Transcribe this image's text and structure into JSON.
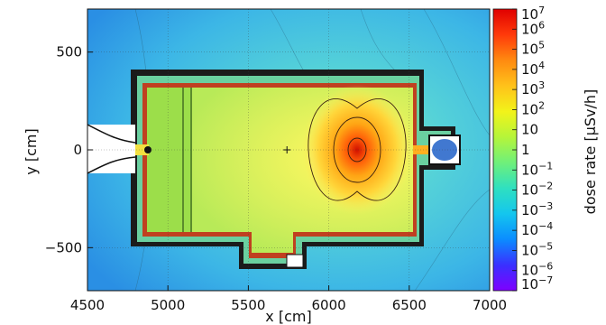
{
  "chart_data": {
    "type": "heatmap",
    "x_label": "x [cm]",
    "y_label": "y [cm]",
    "colorbar_label": "dose rate  [μSv/h]",
    "x_range": [
      4500,
      7000
    ],
    "y_range": [
      -720,
      720
    ],
    "x_ticks": [
      {
        "value": 4500,
        "label": "4500"
      },
      {
        "value": 5000,
        "label": "5000"
      },
      {
        "value": 5500,
        "label": "5500"
      },
      {
        "value": 6000,
        "label": "6000"
      },
      {
        "value": 6500,
        "label": "6500"
      },
      {
        "value": 7000,
        "label": "7000"
      }
    ],
    "y_ticks": [
      {
        "value": 500,
        "label": "500"
      },
      {
        "value": 0,
        "label": "0"
      },
      {
        "value": -500,
        "label": "−500"
      }
    ],
    "colorbar": {
      "scale": "log",
      "min_exponent": -7,
      "max_exponent": 7,
      "ticks": [
        {
          "exp": 7,
          "base": "10",
          "sup": "7"
        },
        {
          "exp": 6,
          "base": "10",
          "sup": "6"
        },
        {
          "exp": 5,
          "base": "10",
          "sup": "5"
        },
        {
          "exp": 4,
          "base": "10",
          "sup": "4"
        },
        {
          "exp": 3,
          "base": "10",
          "sup": "3"
        },
        {
          "exp": 2,
          "base": "10",
          "sup": "2"
        },
        {
          "exp": 1,
          "base": "10",
          "sup": ""
        },
        {
          "exp": 0,
          "base": "1",
          "sup": ""
        },
        {
          "exp": -1,
          "base": "10",
          "sup": "−1"
        },
        {
          "exp": -2,
          "base": "10",
          "sup": "−2"
        },
        {
          "exp": -3,
          "base": "10",
          "sup": "−3"
        },
        {
          "exp": -4,
          "base": "10",
          "sup": "−4"
        },
        {
          "exp": -5,
          "base": "10",
          "sup": "−5"
        },
        {
          "exp": -6,
          "base": "10",
          "sup": "−6"
        },
        {
          "exp": -7,
          "base": "10",
          "sup": "−7"
        }
      ],
      "colors": [
        "#7f00ff",
        "#3a30ff",
        "#0b8cff",
        "#14c6ee",
        "#2fe0c0",
        "#6ff07a",
        "#b5f53a",
        "#f2f31a",
        "#ffc21a",
        "#ff8a10",
        "#ff3a0a",
        "#e00000"
      ]
    },
    "source_point": {
      "x": 6160,
      "y": 0
    },
    "marker_point": {
      "x": 5740,
      "y": 0
    },
    "grid": true,
    "colors": {
      "outer_field": "#4fc6e4",
      "outer_field_far": "#2f9ee8",
      "room_field": "#ccf064",
      "room_field_left": "#9fe04c",
      "hotspot": "#e84010",
      "wall": "#111111"
    }
  }
}
